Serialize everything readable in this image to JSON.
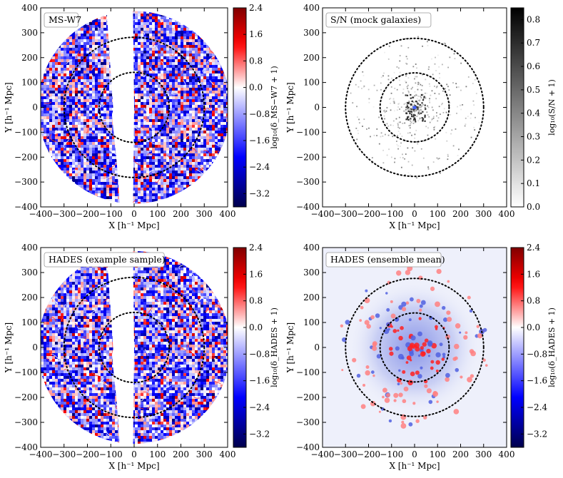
{
  "figure": {
    "description_layout": "2x2 grid of density maps with colorbars"
  },
  "chart_data": [
    {
      "type": "heatmap",
      "title": "MS-W7",
      "xlabel": "X  [h⁻¹ Mpc]",
      "ylabel": "Y  [h⁻¹ Mpc]",
      "xlim": [
        -400,
        400
      ],
      "ylim": [
        -400,
        400
      ],
      "xticks": [
        -400,
        -300,
        -200,
        -100,
        0,
        100,
        200,
        300,
        400
      ],
      "yticks": [
        -400,
        -300,
        -200,
        -100,
        0,
        100,
        200,
        300,
        400
      ],
      "colormap": "seismic",
      "cbar_label": "log₁₀(δ_MS−W7 + 1)",
      "cbar_range": [
        -3.6,
        2.4
      ],
      "cbar_ticks": [
        "2.4",
        "1.6",
        "0.8",
        "0.0",
        "−0.8",
        "−1.6",
        "−2.4",
        "−3.2"
      ],
      "cbar_tick_values": [
        2.4,
        1.6,
        0.8,
        0.0,
        -0.8,
        -1.6,
        -2.4,
        -3.2
      ],
      "survey_radius": 400,
      "mask_wedge": true,
      "circles": [
        150,
        300
      ],
      "style": "noisy-field"
    },
    {
      "type": "heatmap",
      "title": "S/N (mock galaxies)",
      "xlabel": "X  [h⁻¹ Mpc]",
      "ylabel": "Y  [h⁻¹ Mpc]",
      "xlim": [
        -400,
        400
      ],
      "ylim": [
        -400,
        400
      ],
      "xticks": [
        -400,
        -300,
        -200,
        -100,
        0,
        100,
        200,
        300,
        400
      ],
      "yticks": [
        -400,
        -300,
        -200,
        -100,
        0,
        100,
        200,
        300,
        400
      ],
      "colormap": "gray_r",
      "cbar_label": "log₁₀(S/N + 1)",
      "cbar_range": [
        0.0,
        0.85
      ],
      "cbar_ticks": [
        "0.8",
        "0.7",
        "0.6",
        "0.5",
        "0.4",
        "0.3",
        "0.2",
        "0.1",
        "0.0"
      ],
      "cbar_tick_values": [
        0.8,
        0.7,
        0.6,
        0.5,
        0.4,
        0.3,
        0.2,
        0.1,
        0.0
      ],
      "circles": [
        150,
        300
      ],
      "style": "sparse"
    },
    {
      "type": "heatmap",
      "title": "HADES (example sample)",
      "xlabel": "X  [h⁻¹ Mpc]",
      "ylabel": "Y  [h⁻¹ Mpc]",
      "xlim": [
        -400,
        400
      ],
      "ylim": [
        -400,
        400
      ],
      "xticks": [
        -400,
        -300,
        -200,
        -100,
        0,
        100,
        200,
        300,
        400
      ],
      "yticks": [
        -400,
        -300,
        -200,
        -100,
        0,
        100,
        200,
        300,
        400
      ],
      "colormap": "seismic",
      "cbar_label": "log₁₀(δ_HADES + 1)",
      "cbar_range": [
        -3.6,
        2.4
      ],
      "cbar_ticks": [
        "2.4",
        "1.6",
        "0.8",
        "0.0",
        "−0.8",
        "−1.6",
        "−2.4",
        "−3.2"
      ],
      "cbar_tick_values": [
        2.4,
        1.6,
        0.8,
        0.0,
        -0.8,
        -1.6,
        -2.4,
        -3.2
      ],
      "survey_radius": 400,
      "mask_wedge": true,
      "circles": [
        150,
        300
      ],
      "style": "noisy-field"
    },
    {
      "type": "heatmap",
      "title": "HADES (ensemble mean)",
      "xlabel": "X  [h⁻¹ Mpc]",
      "ylabel": "Y  [h⁻¹ Mpc]",
      "xlim": [
        -400,
        400
      ],
      "ylim": [
        -400,
        400
      ],
      "xticks": [
        -400,
        -300,
        -200,
        -100,
        0,
        100,
        200,
        300,
        400
      ],
      "yticks": [
        -400,
        -300,
        -200,
        -100,
        0,
        100,
        200,
        300,
        400
      ],
      "colormap": "seismic",
      "cbar_label": "log₁₀(δ_HADES + 1)",
      "cbar_range": [
        -3.6,
        2.4
      ],
      "cbar_ticks": [
        "2.4",
        "1.6",
        "0.8",
        "0.0",
        "−0.8",
        "−1.6",
        "−2.4",
        "−3.2"
      ],
      "cbar_tick_values": [
        2.4,
        1.6,
        0.8,
        0.0,
        -0.8,
        -1.6,
        -2.4,
        -3.2
      ],
      "circles": [
        150,
        300
      ],
      "style": "smooth-mean"
    }
  ]
}
